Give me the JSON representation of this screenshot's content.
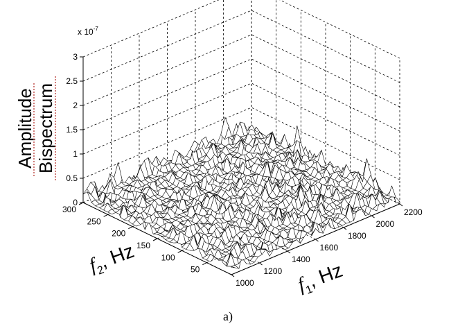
{
  "chart_data": {
    "type": "surface",
    "title": "",
    "zlabel": [
      "Amplitude",
      "Bispectrum"
    ],
    "xlabel": {
      "symbol": "f",
      "sub": "1",
      "unit": ", Hz"
    },
    "ylabel": {
      "symbol": "f",
      "sub": "2",
      "unit": ", Hz"
    },
    "exponent": {
      "base": "x 10",
      "power": "-7"
    },
    "caption": "a)",
    "x_ticks": [
      "1000",
      "1200",
      "1400",
      "1600",
      "1800",
      "2000",
      "2200"
    ],
    "x_lim": [
      1000,
      2200
    ],
    "y_ticks": [
      "50",
      "100",
      "150",
      "200",
      "250",
      "300"
    ],
    "y_lim": [
      0,
      300
    ],
    "z_ticks": [
      "0",
      "0.5",
      "1",
      "1.5",
      "2",
      "2.5",
      "3"
    ],
    "z_lim": [
      0,
      3
    ],
    "grid": true,
    "z_description": "dense noisy surface with amplitudes mostly below 0.5e-7, occasional peaks up to ~0.5e-7"
  }
}
